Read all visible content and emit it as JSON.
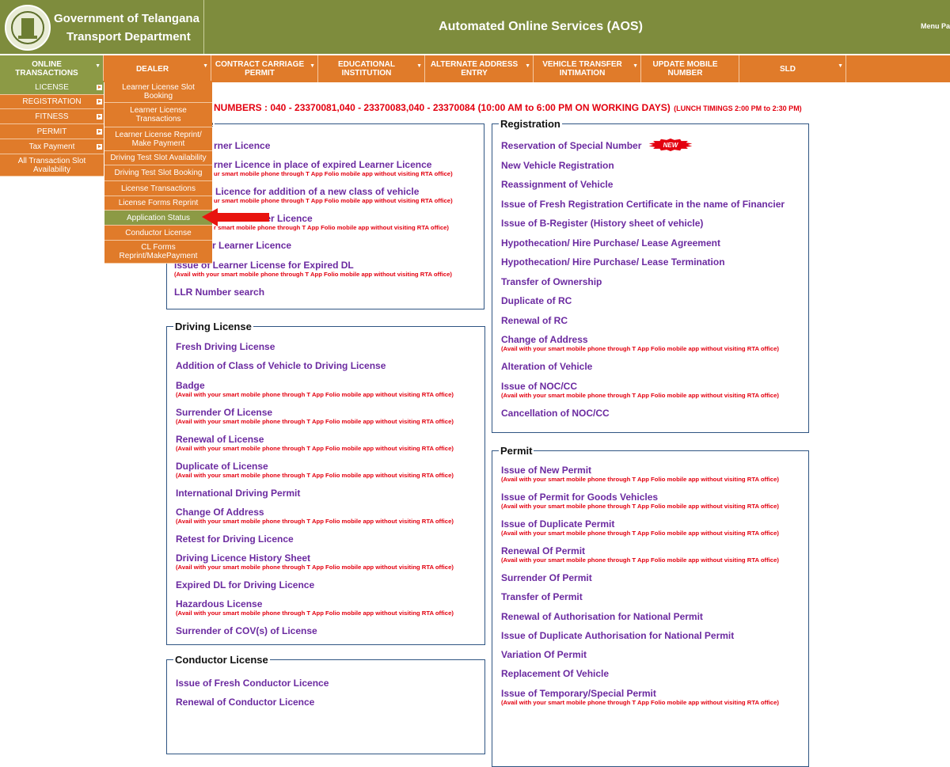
{
  "header": {
    "line1": "Government of Telangana",
    "line2": "Transport Department",
    "title": "Automated Online Services (AOS)",
    "menu": "Menu Pa"
  },
  "nav": [
    "ONLINE TRANSACTIONS",
    "DEALER",
    "CONTRACT CARRIAGE PERMIT",
    "EDUCATIONAL INSTITUTION",
    "ALTERNATE ADDRESS ENTRY",
    "VEHICLE TRANSFER INTIMATION",
    "UPDATE MOBILE NUMBER",
    "SLD"
  ],
  "side_menu": [
    "LICENSE",
    "REGISTRATION",
    "FITNESS",
    "PERMIT",
    "Tax Payment",
    "All Transaction Slot Availability"
  ],
  "sub_menu": [
    "Learner License Slot Booking",
    "Learner License Transactions",
    "Learner License Reprint/ Make Payment",
    "Driving Test Slot Availability",
    "Driving Test Slot Booking",
    "License Transactions",
    "License Forms Reprint",
    "Application Status",
    "Conductor License",
    "CL Forms Reprint/MakePayment"
  ],
  "helpline": {
    "numbers": "NUMBERS : 040 - 23370081,040 - 23370083,040 - 23370084 (10:00 AM to 6:00 PM ON WORKING DAYS)",
    "lunch": "(LUNCH TIMINGS 2:00 PM to 2:30 PM)"
  },
  "sections": [
    {
      "title": "License",
      "items": [
        {
          "label": "rner Licence"
        },
        {
          "label": "rner Licence in place of expired Learner Licence",
          "note": "ur smart mobile phone through T App Folio mobile app without visiting RTA office)"
        },
        {
          "label": "Licence for addition of a new class of vehicle",
          "note": "ur smart mobile phone through T App Folio mobile app without visiting RTA office)"
        },
        {
          "label": "her Licence",
          "note": "r smart mobile phone through T App Folio mobile app without visiting RTA office)"
        },
        {
          "label": "r Learner Licence"
        },
        {
          "label": "Issue of Learner License for Expired DL",
          "note": "(Avail with your smart mobile phone through T App Folio mobile app without visiting RTA office)"
        },
        {
          "label": "LLR Number search"
        }
      ]
    },
    {
      "title": "Registration",
      "items": [
        {
          "label": "Reservation of Special Number",
          "badge": "NEW"
        },
        {
          "label": "New Vehicle Registration"
        },
        {
          "label": "Reassignment of Vehicle"
        },
        {
          "label": "Issue of Fresh Registration Certificate in the name of Financier"
        },
        {
          "label": "Issue of B-Register (History sheet of vehicle)"
        },
        {
          "label": "Hypothecation/ Hire Purchase/ Lease Agreement"
        },
        {
          "label": "Hypothecation/ Hire Purchase/ Lease Termination"
        },
        {
          "label": "Transfer of Ownership"
        },
        {
          "label": "Duplicate of RC"
        },
        {
          "label": "Renewal of RC"
        },
        {
          "label": "Change of Address",
          "note": "(Avail with your smart mobile phone through T App Folio mobile app without visiting RTA office)"
        },
        {
          "label": "Alteration of Vehicle"
        },
        {
          "label": "Issue of NOC/CC",
          "note": "(Avail with your smart mobile phone through T App Folio mobile app without visiting RTA office)"
        },
        {
          "label": "Cancellation of NOC/CC"
        }
      ]
    },
    {
      "title": "Driving License",
      "items": [
        {
          "label": "Fresh Driving License"
        },
        {
          "label": "Addition of Class of Vehicle to Driving License"
        },
        {
          "label": "Badge",
          "note": "(Avail with your smart mobile phone through T App Folio mobile app without visiting RTA office)"
        },
        {
          "label": "Surrender Of License",
          "note": "(Avail with your smart mobile phone through T App Folio mobile app without visiting RTA office)"
        },
        {
          "label": "Renewal of License",
          "note": "(Avail with your smart mobile phone through T App Folio mobile app without visiting RTA office)"
        },
        {
          "label": "Duplicate of License",
          "note": "(Avail with your smart mobile phone through T App Folio mobile app without visiting RTA office)"
        },
        {
          "label": "International Driving Permit"
        },
        {
          "label": "Change Of Address",
          "note": "(Avail with your smart mobile phone through T App Folio mobile app without visiting RTA office)"
        },
        {
          "label": "Retest for Driving Licence"
        },
        {
          "label": "Driving Licence History Sheet",
          "note": "(Avail with your smart mobile phone through T App Folio mobile app without visiting RTA office)"
        },
        {
          "label": "Expired DL for Driving Licence"
        },
        {
          "label": "Hazardous License",
          "note": "(Avail with your smart mobile phone through T App Folio mobile app without visiting RTA office)"
        },
        {
          "label": "Surrender of COV(s) of License"
        }
      ]
    },
    {
      "title": "Conductor License",
      "items": [
        {
          "label": "Issue of Fresh Conductor Licence"
        },
        {
          "label": "Renewal of Conductor Licence"
        }
      ]
    },
    {
      "title": "Permit",
      "items": [
        {
          "label": "Issue of New Permit",
          "note": "(Avail with your smart mobile phone through T App Folio mobile app without visiting RTA office)"
        },
        {
          "label": "Issue of Permit for Goods Vehicles",
          "note": "(Avail with your smart mobile phone through T App Folio mobile app without visiting RTA office)"
        },
        {
          "label": "Issue of Duplicate Permit",
          "note": "(Avail with your smart mobile phone through T App Folio mobile app without visiting RTA office)"
        },
        {
          "label": "Renewal Of Permit",
          "note": "(Avail with your smart mobile phone through T App Folio mobile app without visiting RTA office)"
        },
        {
          "label": "Surrender Of Permit"
        },
        {
          "label": "Transfer of Permit"
        },
        {
          "label": "Renewal of Authorisation for National Permit"
        },
        {
          "label": "Issue of Duplicate Authorisation for National Permit"
        },
        {
          "label": "Variation Of Permit"
        },
        {
          "label": "Replacement Of Vehicle"
        },
        {
          "label": "Issue of Temporary/Special Permit",
          "note": "(Avail with your smart mobile phone through T App Folio mobile app without visiting RTA office)"
        }
      ]
    }
  ]
}
